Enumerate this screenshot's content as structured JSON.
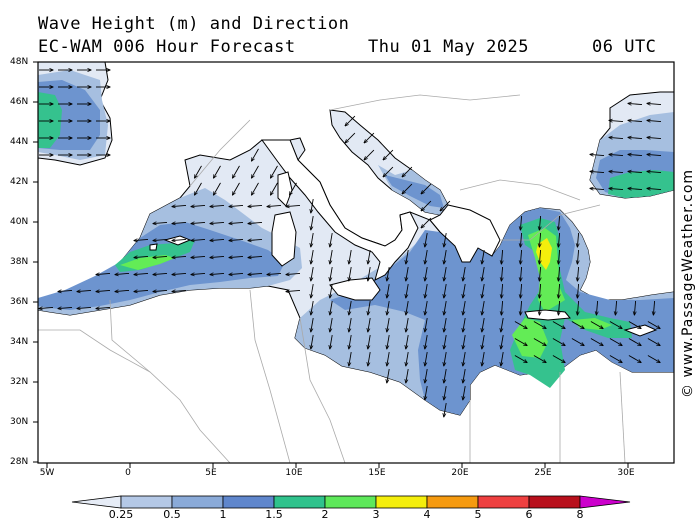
{
  "title": {
    "line1": "Wave Height (m) and Direction",
    "model": "EC-WAM 006 Hour Forecast",
    "date": "Thu 01 May 2025",
    "time": "06 UTC"
  },
  "credit": "© www.PassageWeather.com",
  "map": {
    "lat_labels": [
      "48N",
      "46N",
      "44N",
      "42N",
      "40N",
      "38N",
      "36N",
      "34N",
      "32N",
      "30N",
      "28N"
    ],
    "lon_labels": [
      "5W",
      "0",
      "5E",
      "10E",
      "15E",
      "20E",
      "25E",
      "30E"
    ],
    "colors": {
      "land": "#ffffff",
      "sea_calm": "#e2e9f4",
      "band_05_1": "#a6bfe0",
      "band_1_15": "#6d94cf",
      "band_15_2": "#35c28e",
      "band_2_3": "#63ec56",
      "band_3_4": "#f4ee0c",
      "coast": "#000000",
      "border": "#aaaaaa",
      "arrow": "#000000"
    }
  },
  "legend": {
    "labels": [
      "0.25",
      "0.5",
      "1",
      "1.5",
      "2",
      "3",
      "4",
      "5",
      "6",
      "8"
    ],
    "colors": [
      "#e6ecf6",
      "#b4c8e6",
      "#8aaad8",
      "#5f86cc",
      "#30c28c",
      "#5ee85a",
      "#f4ee0c",
      "#f59a10",
      "#ee4040",
      "#b8101c",
      "#cc00cc"
    ]
  }
}
